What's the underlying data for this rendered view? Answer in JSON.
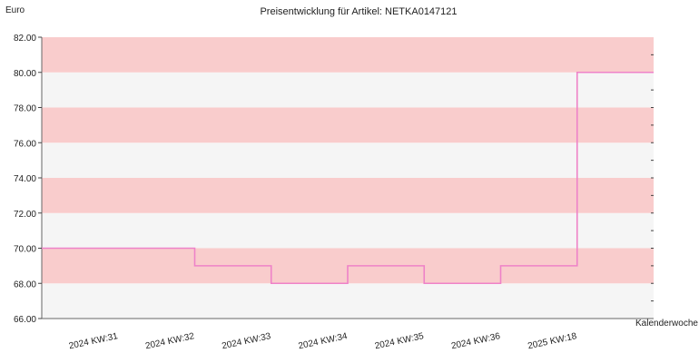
{
  "chart_data": {
    "type": "line",
    "step": true,
    "title": "Preisentwicklung für Artikel: NETKA0147121",
    "ylabel": "Euro",
    "xlabel": "Kalenderwoche",
    "ylim": [
      66.0,
      82.0
    ],
    "y_ticks": [
      "66.00",
      "68.00",
      "70.00",
      "72.00",
      "74.00",
      "76.00",
      "78.00",
      "80.00",
      "82.00"
    ],
    "categories": [
      "2024 KW:31",
      "2024 KW:32",
      "2024 KW:33",
      "2024 KW:34",
      "2024 KW:35",
      "2024 KW:36",
      "2025 KW:18"
    ],
    "series": [
      {
        "values": [
          70.0,
          69.0,
          68.0,
          69.0,
          68.0,
          69.0,
          80.0
        ]
      }
    ],
    "line_color": "#ee82c8",
    "band_colors": [
      "#f9cccc",
      "#f5f5f5"
    ],
    "grid": false
  }
}
